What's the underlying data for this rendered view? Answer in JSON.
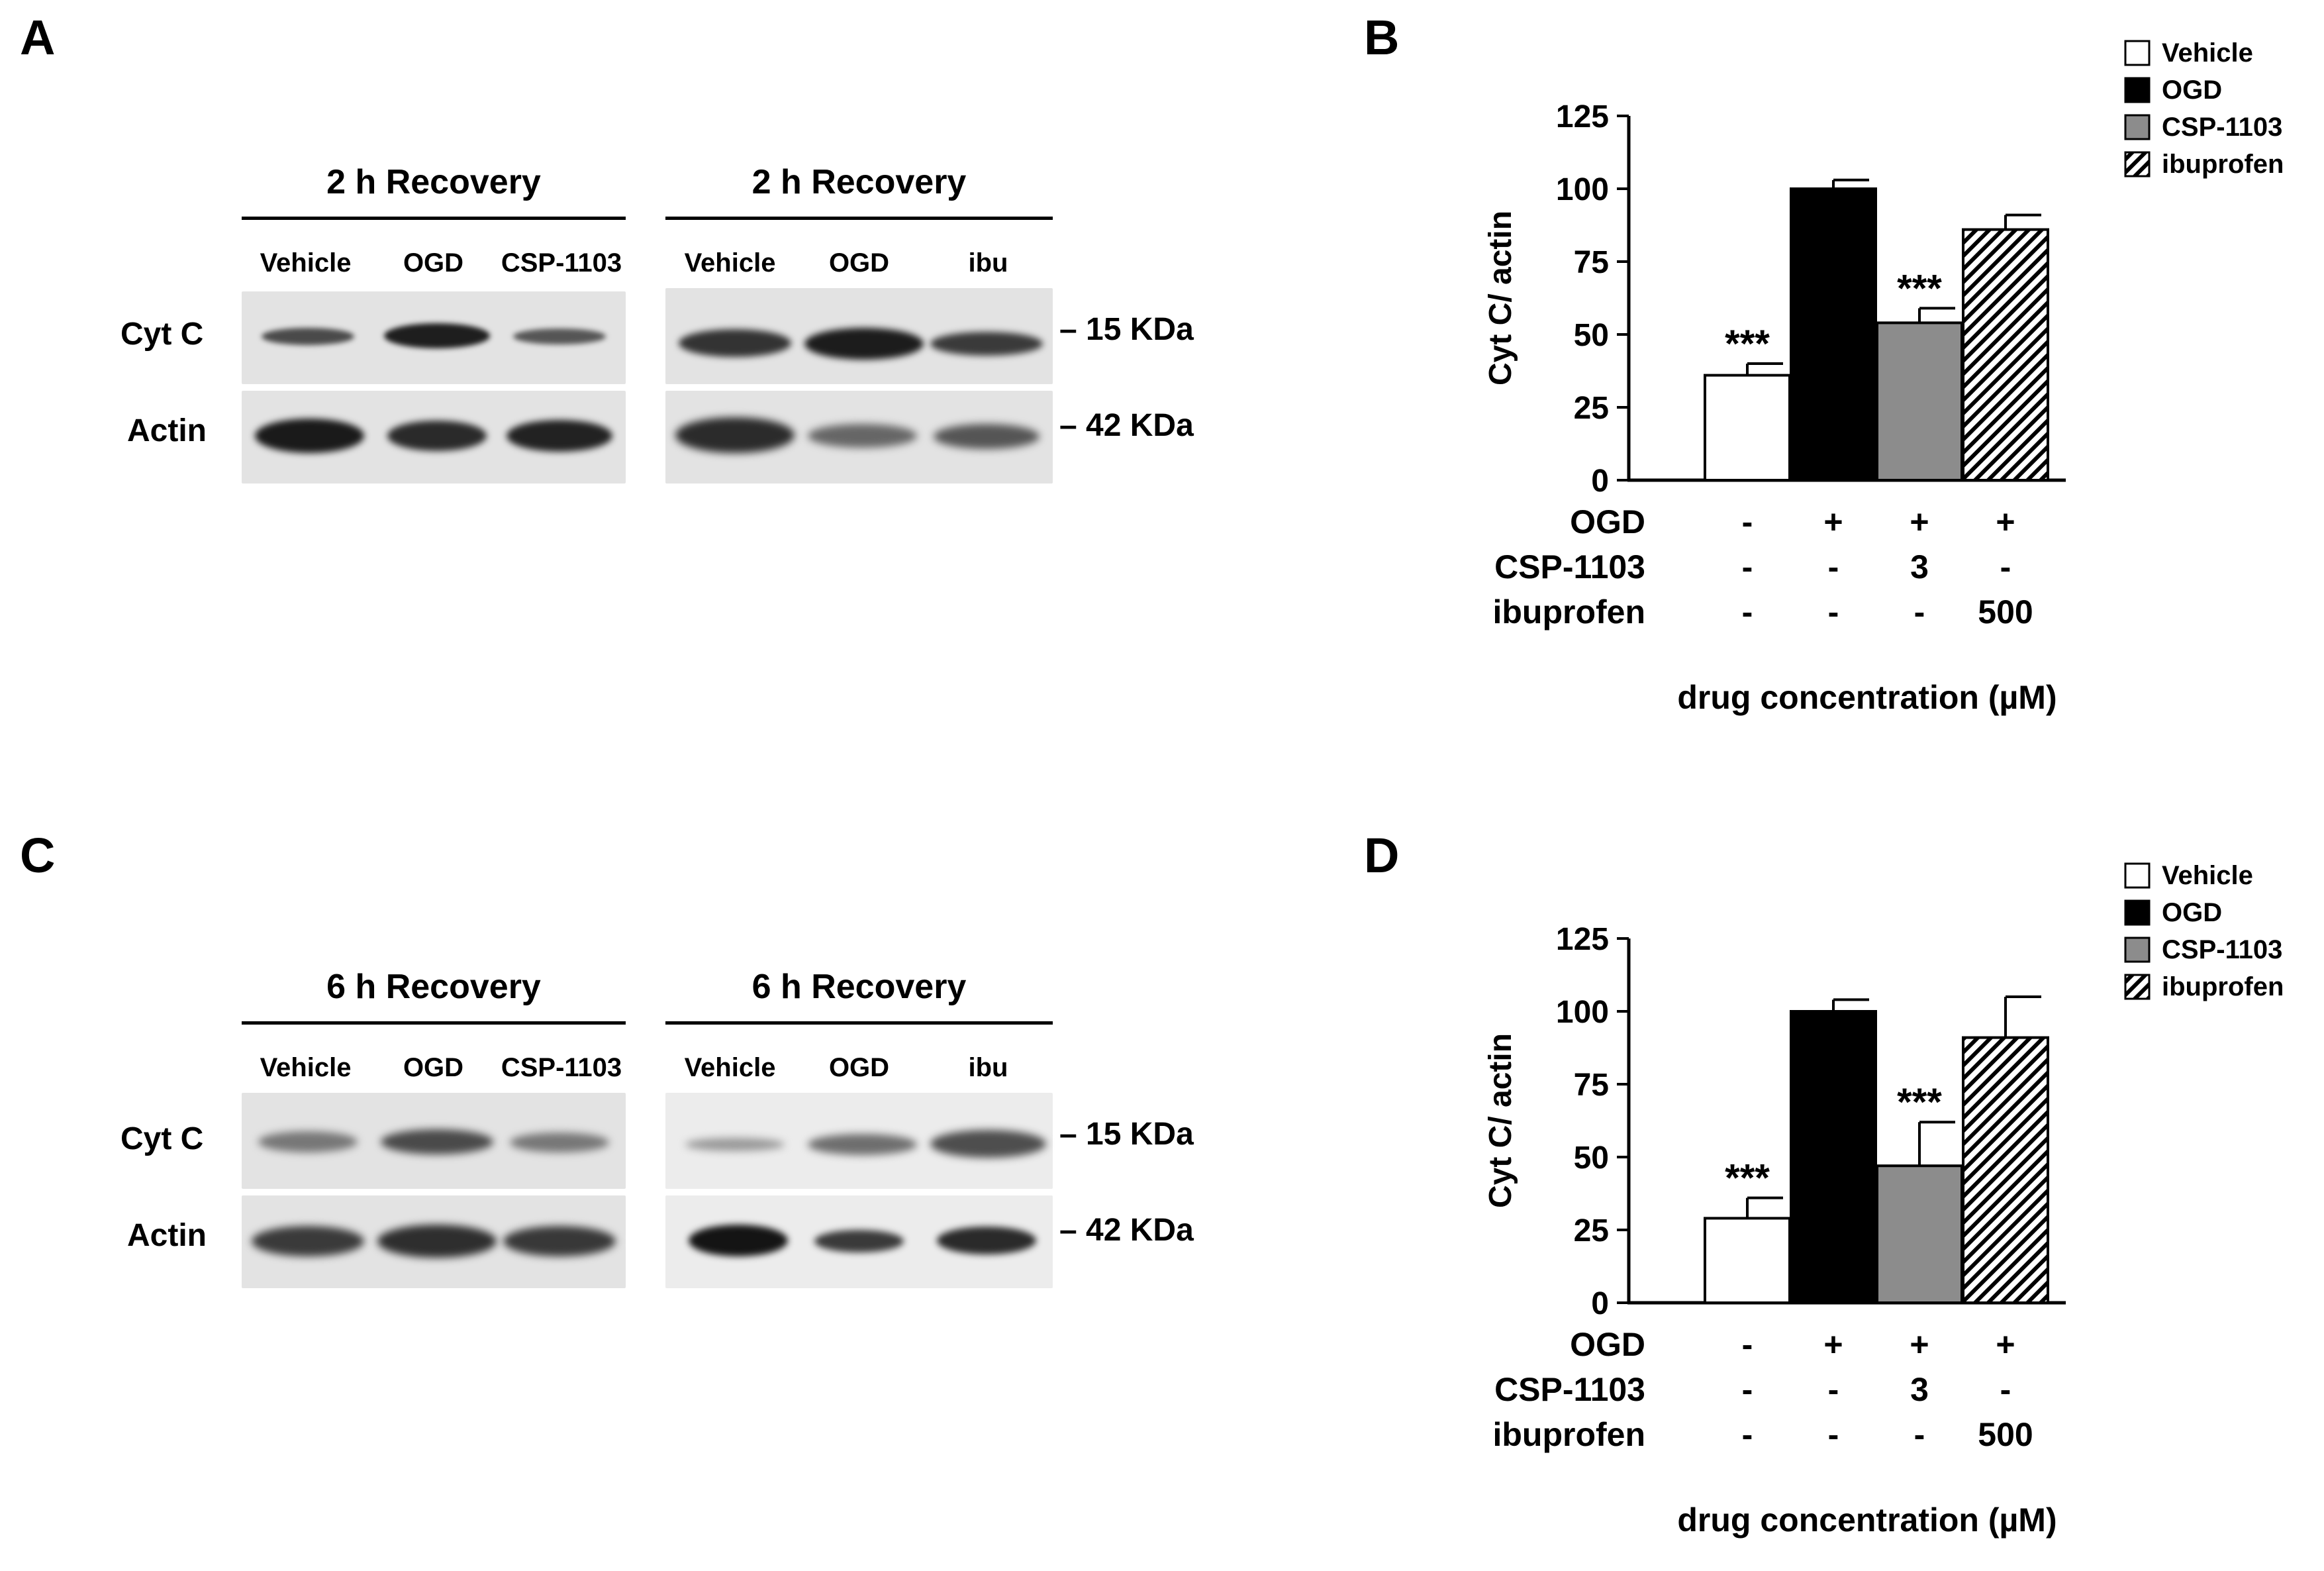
{
  "panels": {
    "A": {
      "letter": "A",
      "left": {
        "header": "2 h Recovery",
        "lanes": [
          "Vehicle",
          "OGD",
          "CSP-1103"
        ]
      },
      "right": {
        "header": "2 h Recovery",
        "lanes": [
          "Vehicle",
          "OGD",
          "ibu"
        ]
      },
      "rows": [
        "Cyt C",
        "Actin"
      ],
      "markers": [
        "– 15 KDa",
        "– 42 KDa"
      ]
    },
    "C": {
      "letter": "C",
      "left": {
        "header": "6 h Recovery",
        "lanes": [
          "Vehicle",
          "OGD",
          "CSP-1103"
        ]
      },
      "right": {
        "header": "6 h Recovery",
        "lanes": [
          "Vehicle",
          "OGD",
          "ibu"
        ]
      },
      "rows": [
        "Cyt C",
        "Actin"
      ],
      "markers": [
        "– 15 KDa",
        "– 42 KDa"
      ]
    },
    "B": {
      "letter": "B"
    },
    "D": {
      "letter": "D"
    }
  },
  "chart_data": [
    {
      "panel": "B",
      "type": "bar",
      "categories": [
        "Vehicle",
        "OGD",
        "CSP-1103",
        "ibuprofen"
      ],
      "values": [
        36,
        100,
        54,
        86
      ],
      "errors": [
        4,
        3,
        5,
        5
      ],
      "significance": [
        "***",
        "",
        "***",
        ""
      ],
      "ylabel": "Cyt C/ actin",
      "xlabel": "drug concentration (µM)",
      "ylim": [
        0,
        125
      ],
      "yticks": [
        0,
        25,
        50,
        75,
        100,
        125
      ],
      "legend": [
        "Vehicle",
        "OGD",
        "CSP-1103",
        "ibuprofen"
      ],
      "legend_position": "top-right",
      "fills": [
        "#ffffff",
        "#000000",
        "#8c8c8c",
        "hatch"
      ],
      "conditions": [
        {
          "label": "OGD",
          "values": [
            "-",
            "+",
            "+",
            "+"
          ]
        },
        {
          "label": "CSP-1103",
          "values": [
            "-",
            "-",
            "3",
            "-"
          ]
        },
        {
          "label": "ibuprofen",
          "values": [
            "-",
            "-",
            "-",
            "500"
          ]
        }
      ]
    },
    {
      "panel": "D",
      "type": "bar",
      "categories": [
        "Vehicle",
        "OGD",
        "CSP-1103",
        "ibuprofen"
      ],
      "values": [
        29,
        100,
        47,
        91
      ],
      "errors": [
        7,
        4,
        15,
        14
      ],
      "significance": [
        "***",
        "",
        "***",
        ""
      ],
      "ylabel": "Cyt C/ actin",
      "xlabel": "drug concentration (µM)",
      "ylim": [
        0,
        125
      ],
      "yticks": [
        0,
        25,
        50,
        75,
        100,
        125
      ],
      "legend": [
        "Vehicle",
        "OGD",
        "CSP-1103",
        "ibuprofen"
      ],
      "legend_position": "top-right",
      "fills": [
        "#ffffff",
        "#000000",
        "#8c8c8c",
        "hatch"
      ],
      "conditions": [
        {
          "label": "OGD",
          "values": [
            "-",
            "+",
            "+",
            "+"
          ]
        },
        {
          "label": "CSP-1103",
          "values": [
            "-",
            "-",
            "3",
            "-"
          ]
        },
        {
          "label": "ibuprofen",
          "values": [
            "-",
            "-",
            "-",
            "500"
          ]
        }
      ]
    }
  ]
}
